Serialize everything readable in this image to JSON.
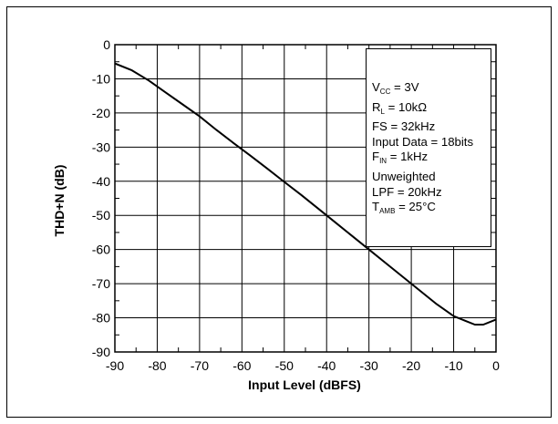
{
  "chart_data": {
    "type": "line",
    "title": "",
    "xlabel": "Input Level (dBFS)",
    "ylabel": "THD+N (dB)",
    "xlim": [
      -90,
      0
    ],
    "ylim": [
      -90,
      0
    ],
    "xticks": [
      -90,
      -80,
      -70,
      -60,
      -50,
      -40,
      -30,
      -20,
      -10,
      0
    ],
    "yticks": [
      0,
      -10,
      -20,
      -30,
      -40,
      -50,
      -60,
      -70,
      -80,
      -90
    ],
    "grid": true,
    "series": [
      {
        "x": [
          -90,
          -86,
          -82,
          -78,
          -74,
          -70,
          -66,
          -62,
          -58,
          -54,
          -50,
          -46,
          -42,
          -38,
          -34,
          -30,
          -26,
          -22,
          -18,
          -14,
          -10,
          -7,
          -5,
          -3,
          -1,
          0
        ],
        "y": [
          -5.5,
          -7.5,
          -10.5,
          -14,
          -17.5,
          -21,
          -25,
          -28.8,
          -32.5,
          -36.3,
          -40.2,
          -44,
          -48,
          -52,
          -56,
          -60,
          -64,
          -68,
          -72,
          -76,
          -79.5,
          -81,
          -82,
          -82,
          -81,
          -80.5
        ]
      }
    ],
    "annotations": {
      "vcc": {
        "main": "V",
        "sub": "CC",
        "value": " = 3V"
      },
      "rl": {
        "main": "R",
        "sub": "L",
        "value": " = 10kΩ"
      },
      "fs": "FS = 32kHz",
      "input_data": "Input Data = 18bits",
      "fin": {
        "main": "F",
        "sub": "IN",
        "value": " = 1kHz"
      },
      "weighting": "Unweighted",
      "lpf": "LPF = 20kHz",
      "tamb": {
        "main": "T",
        "sub": "AMB",
        "value": " = 25°C"
      }
    },
    "legend_position": "top-right",
    "line_color": "#000000"
  }
}
